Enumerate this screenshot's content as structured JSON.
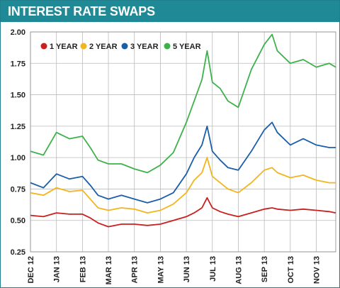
{
  "header": {
    "title": "INTEREST RATE SWAPS"
  },
  "colors": {
    "header_bg": "#1f8a96",
    "grid": "#bbbbbb",
    "one_year": "#c8201f",
    "two_year": "#f2b51d",
    "three_year": "#1b5ea8",
    "five_year": "#3db24a"
  },
  "chart_data": {
    "type": "line",
    "title": "INTEREST RATE SWAPS",
    "ylim": [
      0.25,
      2.0
    ],
    "yticks": [
      "2.00",
      "1.75",
      "1.50",
      "1.25",
      "1.00",
      "0.75",
      "0.50",
      "0.25"
    ],
    "ytick_values": [
      2.0,
      1.75,
      1.5,
      1.25,
      1.0,
      0.75,
      0.5,
      0.25
    ],
    "xticks": [
      "DEC 12",
      "JAN 13",
      "FEB 13",
      "MAR 13",
      "APR 13",
      "MAY 13",
      "JUN 13",
      "JUL 13",
      "AUG 13",
      "SEP 13",
      "OCT 13",
      "NOV 13"
    ],
    "xlim": [
      0,
      11.75
    ],
    "grid": true,
    "legend_position": "top-left",
    "series": [
      {
        "name": "1 YEAR",
        "color": "#c8201f",
        "x": [
          0,
          0.5,
          1,
          1.5,
          2,
          2.3,
          2.6,
          3,
          3.5,
          4,
          4.5,
          5,
          5.5,
          6,
          6.3,
          6.6,
          6.8,
          7,
          7.3,
          7.6,
          8,
          8.5,
          9,
          9.3,
          9.5,
          10,
          10.5,
          11,
          11.5,
          11.75
        ],
        "values": [
          0.54,
          0.53,
          0.56,
          0.55,
          0.55,
          0.52,
          0.48,
          0.45,
          0.47,
          0.47,
          0.46,
          0.47,
          0.5,
          0.53,
          0.56,
          0.6,
          0.68,
          0.6,
          0.57,
          0.55,
          0.53,
          0.56,
          0.59,
          0.6,
          0.59,
          0.58,
          0.59,
          0.58,
          0.57,
          0.56
        ]
      },
      {
        "name": "2 YEAR",
        "color": "#f2b51d",
        "x": [
          0,
          0.5,
          1,
          1.5,
          2,
          2.3,
          2.6,
          3,
          3.5,
          4,
          4.5,
          5,
          5.5,
          6,
          6.3,
          6.6,
          6.8,
          7,
          7.3,
          7.6,
          8,
          8.5,
          9,
          9.3,
          9.5,
          10,
          10.5,
          11,
          11.5,
          11.75
        ],
        "values": [
          0.72,
          0.7,
          0.76,
          0.73,
          0.74,
          0.67,
          0.6,
          0.58,
          0.6,
          0.59,
          0.56,
          0.58,
          0.63,
          0.72,
          0.82,
          0.88,
          1.0,
          0.85,
          0.8,
          0.75,
          0.72,
          0.8,
          0.9,
          0.92,
          0.88,
          0.84,
          0.86,
          0.82,
          0.8,
          0.8
        ]
      },
      {
        "name": "3 YEAR",
        "color": "#1b5ea8",
        "x": [
          0,
          0.5,
          1,
          1.5,
          2,
          2.3,
          2.6,
          3,
          3.5,
          4,
          4.5,
          5,
          5.5,
          6,
          6.3,
          6.6,
          6.8,
          7,
          7.3,
          7.6,
          8,
          8.5,
          9,
          9.3,
          9.5,
          10,
          10.5,
          11,
          11.5,
          11.75
        ],
        "values": [
          0.8,
          0.76,
          0.87,
          0.83,
          0.85,
          0.78,
          0.7,
          0.67,
          0.7,
          0.67,
          0.64,
          0.67,
          0.72,
          0.87,
          1.0,
          1.1,
          1.25,
          1.05,
          0.98,
          0.92,
          0.9,
          1.05,
          1.22,
          1.28,
          1.2,
          1.1,
          1.15,
          1.1,
          1.08,
          1.08
        ]
      },
      {
        "name": "5 YEAR",
        "color": "#3db24a",
        "x": [
          0,
          0.5,
          1,
          1.5,
          2,
          2.3,
          2.6,
          3,
          3.5,
          4,
          4.5,
          5,
          5.5,
          6,
          6.3,
          6.6,
          6.8,
          7,
          7.3,
          7.6,
          8,
          8.5,
          9,
          9.3,
          9.5,
          10,
          10.5,
          11,
          11.5,
          11.75
        ],
        "values": [
          1.05,
          1.02,
          1.2,
          1.15,
          1.17,
          1.08,
          0.98,
          0.95,
          0.95,
          0.91,
          0.88,
          0.94,
          1.04,
          1.28,
          1.45,
          1.62,
          1.85,
          1.6,
          1.55,
          1.45,
          1.4,
          1.7,
          1.9,
          1.98,
          1.85,
          1.75,
          1.78,
          1.72,
          1.75,
          1.72
        ]
      }
    ]
  }
}
